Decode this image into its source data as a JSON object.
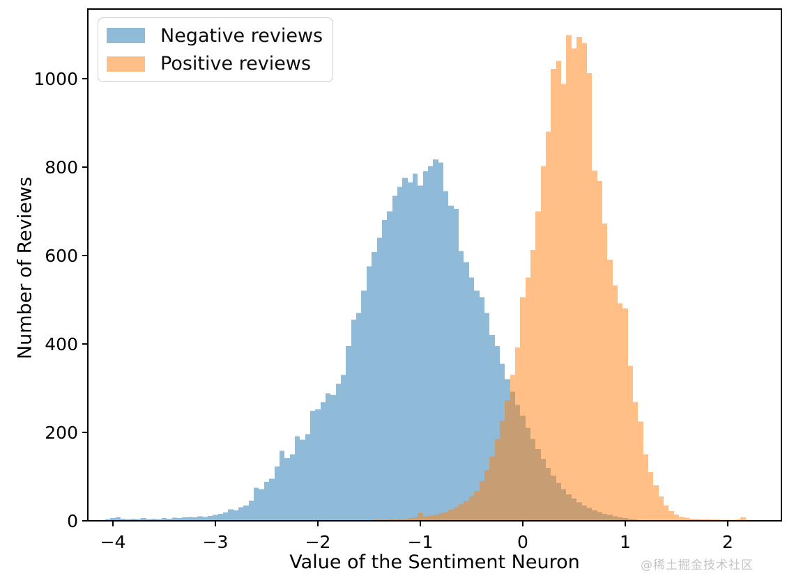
{
  "chart_data": {
    "type": "bar",
    "subtype": "histogram",
    "title": "",
    "xlabel": "Value of the Sentiment Neuron",
    "ylabel": "Number of Reviews",
    "xlim": [
      -4.245,
      2.524
    ],
    "ylim": [
      0,
      1157
    ],
    "grid": false,
    "alpha": 0.5,
    "legend_position": "upper left",
    "xticks": {
      "values": [
        -4,
        -3,
        -2,
        -1,
        0,
        1,
        2
      ],
      "labels": [
        "−4",
        "−3",
        "−2",
        "−1",
        "0",
        "1",
        "2"
      ]
    },
    "yticks": {
      "values": [
        0,
        200,
        400,
        600,
        800,
        1000
      ],
      "labels": [
        "0",
        "200",
        "400",
        "600",
        "800",
        "1000"
      ]
    },
    "series": [
      {
        "name": "Negative reviews",
        "color": "#1f77b4",
        "bin_start": -4.075,
        "bin_width": 0.05,
        "counts": [
          4,
          6,
          8,
          5,
          4,
          5,
          4,
          6,
          4,
          5,
          4,
          6,
          5,
          7,
          6,
          8,
          9,
          8,
          10,
          9,
          11,
          13,
          16,
          19,
          26,
          24,
          31,
          35,
          46,
          75,
          72,
          88,
          95,
          123,
          158,
          142,
          150,
          191,
          183,
          196,
          249,
          252,
          268,
          288,
          285,
          310,
          330,
          395,
          455,
          470,
          520,
          575,
          608,
          640,
          680,
          700,
          735,
          755,
          775,
          765,
          785,
          758,
          790,
          802,
          817,
          810,
          745,
          712,
          705,
          610,
          585,
          550,
          520,
          505,
          470,
          420,
          395,
          355,
          320,
          292,
          262,
          238,
          210,
          185,
          162,
          140,
          120,
          102,
          86,
          72,
          60,
          50,
          42,
          35,
          29,
          24,
          20,
          16,
          13,
          10,
          8,
          6,
          4,
          3
        ]
      },
      {
        "name": "Positive reviews",
        "color": "#ff7f0e",
        "bin_start": -1.475,
        "bin_width": 0.05,
        "counts": [
          2,
          3,
          2,
          4,
          3,
          5,
          4,
          6,
          8,
          18,
          10,
          12,
          14,
          17,
          20,
          25,
          31,
          38,
          46,
          56,
          68,
          90,
          115,
          146,
          185,
          226,
          272,
          330,
          392,
          505,
          550,
          612,
          700,
          802,
          880,
          1022,
          1040,
          988,
          1098,
          1068,
          1094,
          1080,
          1012,
          792,
          768,
          672,
          590,
          532,
          492,
          480,
          350,
          268,
          224,
          150,
          110,
          80,
          55,
          35,
          22,
          14,
          9,
          7,
          5,
          5,
          4,
          4,
          3,
          3,
          2,
          2,
          2,
          3,
          8,
          2
        ]
      }
    ]
  },
  "watermark": {
    "text": "@稀土掘金技术社区"
  }
}
